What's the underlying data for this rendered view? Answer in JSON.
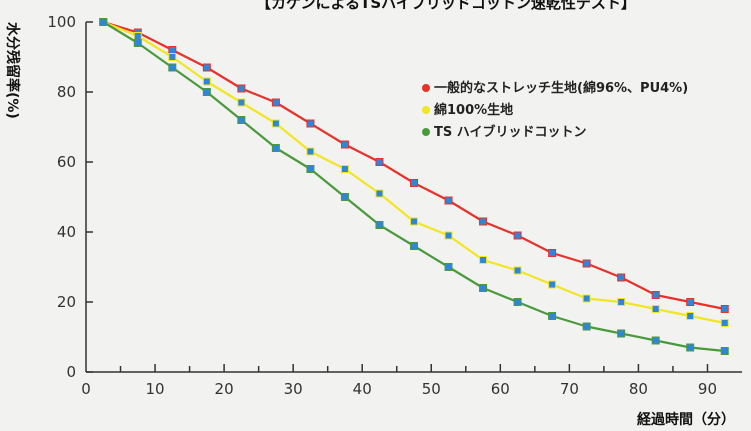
{
  "chart_data": {
    "type": "line",
    "title": "【カケンによるTSハイブリッドコットン速乾性テスト】",
    "xlabel": "経過時間（分）",
    "ylabel": "水分残留率(%)",
    "xlim": [
      0,
      95
    ],
    "ylim": [
      0,
      100
    ],
    "x_ticks": [
      0,
      10,
      20,
      30,
      40,
      50,
      60,
      70,
      80,
      90
    ],
    "y_ticks": [
      0,
      20,
      40,
      60,
      80,
      100
    ],
    "legend_position": "right",
    "x": [
      2.5,
      7.5,
      12.5,
      17.5,
      22.5,
      27.5,
      32.5,
      37.5,
      42.5,
      47.5,
      52.5,
      57.5,
      62.5,
      67.5,
      72.5,
      77.5,
      82.5,
      87.5,
      92.5
    ],
    "series": [
      {
        "name": "一般的なストレッチ生地(綿96%、PU4%)",
        "color": "#e8312a",
        "values": [
          100,
          97,
          92,
          87,
          81,
          77,
          71,
          65,
          60,
          54,
          49,
          43,
          39,
          34,
          31,
          27,
          22,
          20,
          18
        ]
      },
      {
        "name": "綿100%生地",
        "color": "#f2e620",
        "values": [
          100,
          96,
          90,
          83,
          77,
          71,
          63,
          58,
          51,
          43,
          39,
          32,
          29,
          25,
          21,
          20,
          18,
          16,
          14
        ]
      },
      {
        "name": "TS ハイブリッドコットン",
        "color": "#4a9a3c",
        "values": [
          100,
          94,
          87,
          80,
          72,
          64,
          58,
          50,
          42,
          36,
          30,
          24,
          20,
          16,
          13,
          11,
          9,
          7,
          6
        ]
      }
    ],
    "marker_color": "#2f86d6"
  }
}
